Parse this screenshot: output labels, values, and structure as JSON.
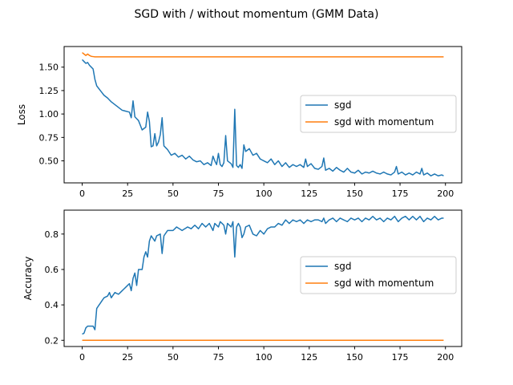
{
  "figure": {
    "title": "SGD with / without momentum (GMM Data)"
  },
  "colors": {
    "sgd": "#1f77b4",
    "sgd_momentum": "#ff7f0e"
  },
  "chart_data": [
    {
      "type": "line",
      "title": "",
      "xlabel": "",
      "ylabel": "Loss",
      "xlim": [
        -9.95,
        208.95
      ],
      "ylim": [
        0.265,
        1.72
      ],
      "xticks": [
        0,
        25,
        50,
        75,
        100,
        125,
        150,
        175,
        200
      ],
      "xtick_labels": [
        "0",
        "25",
        "50",
        "75",
        "100",
        "125",
        "150",
        "175",
        "200"
      ],
      "yticks": [
        0.5,
        0.75,
        1.0,
        1.25,
        1.5
      ],
      "ytick_labels": [
        "0.50",
        "0.75",
        "1.00",
        "1.25",
        "1.50"
      ],
      "legend": "center-right",
      "grid": false,
      "series": [
        {
          "name": "sgd",
          "color_key": "sgd",
          "keypoints": [
            [
              0,
              1.58
            ],
            [
              1,
              1.56
            ],
            [
              2,
              1.54
            ],
            [
              3,
              1.55
            ],
            [
              4,
              1.52
            ],
            [
              5,
              1.5
            ],
            [
              6,
              1.48
            ],
            [
              7,
              1.37
            ],
            [
              8,
              1.3
            ],
            [
              10,
              1.25
            ],
            [
              12,
              1.2
            ],
            [
              14,
              1.17
            ],
            [
              16,
              1.13
            ],
            [
              18,
              1.1
            ],
            [
              20,
              1.07
            ],
            [
              22,
              1.04
            ],
            [
              24,
              1.03
            ],
            [
              26,
              1.02
            ],
            [
              27,
              0.96
            ],
            [
              28,
              1.14
            ],
            [
              29,
              0.97
            ],
            [
              31,
              0.93
            ],
            [
              33,
              0.83
            ],
            [
              35,
              0.86
            ],
            [
              36,
              1.02
            ],
            [
              37,
              0.92
            ],
            [
              38,
              0.65
            ],
            [
              39,
              0.66
            ],
            [
              40,
              0.79
            ],
            [
              41,
              0.66
            ],
            [
              42,
              0.7
            ],
            [
              43,
              0.78
            ],
            [
              44,
              0.96
            ],
            [
              45,
              0.66
            ],
            [
              47,
              0.62
            ],
            [
              49,
              0.56
            ],
            [
              51,
              0.58
            ],
            [
              53,
              0.54
            ],
            [
              55,
              0.56
            ],
            [
              57,
              0.52
            ],
            [
              59,
              0.55
            ],
            [
              61,
              0.51
            ],
            [
              63,
              0.49
            ],
            [
              65,
              0.5
            ],
            [
              67,
              0.46
            ],
            [
              69,
              0.48
            ],
            [
              71,
              0.45
            ],
            [
              72,
              0.55
            ],
            [
              73,
              0.5
            ],
            [
              74,
              0.46
            ],
            [
              75,
              0.58
            ],
            [
              76,
              0.46
            ],
            [
              77,
              0.44
            ],
            [
              78,
              0.48
            ],
            [
              79,
              0.77
            ],
            [
              80,
              0.5
            ],
            [
              82,
              0.47
            ],
            [
              83,
              0.43
            ],
            [
              84,
              1.05
            ],
            [
              85,
              0.45
            ],
            [
              86,
              0.43
            ],
            [
              87,
              0.46
            ],
            [
              88,
              0.42
            ],
            [
              89,
              0.67
            ],
            [
              90,
              0.6
            ],
            [
              92,
              0.63
            ],
            [
              94,
              0.56
            ],
            [
              96,
              0.58
            ],
            [
              98,
              0.52
            ],
            [
              100,
              0.5
            ],
            [
              102,
              0.48
            ],
            [
              104,
              0.52
            ],
            [
              106,
              0.46
            ],
            [
              108,
              0.5
            ],
            [
              110,
              0.44
            ],
            [
              112,
              0.48
            ],
            [
              114,
              0.43
            ],
            [
              116,
              0.46
            ],
            [
              118,
              0.44
            ],
            [
              120,
              0.46
            ],
            [
              122,
              0.43
            ],
            [
              123,
              0.52
            ],
            [
              124,
              0.44
            ],
            [
              126,
              0.47
            ],
            [
              128,
              0.42
            ],
            [
              130,
              0.41
            ],
            [
              132,
              0.44
            ],
            [
              133,
              0.53
            ],
            [
              134,
              0.4
            ],
            [
              136,
              0.42
            ],
            [
              138,
              0.39
            ],
            [
              140,
              0.43
            ],
            [
              142,
              0.4
            ],
            [
              144,
              0.38
            ],
            [
              146,
              0.42
            ],
            [
              148,
              0.38
            ],
            [
              150,
              0.37
            ],
            [
              152,
              0.4
            ],
            [
              154,
              0.36
            ],
            [
              156,
              0.38
            ],
            [
              158,
              0.37
            ],
            [
              160,
              0.39
            ],
            [
              162,
              0.37
            ],
            [
              164,
              0.36
            ],
            [
              166,
              0.38
            ],
            [
              168,
              0.36
            ],
            [
              170,
              0.35
            ],
            [
              172,
              0.38
            ],
            [
              173,
              0.44
            ],
            [
              174,
              0.36
            ],
            [
              176,
              0.38
            ],
            [
              178,
              0.35
            ],
            [
              180,
              0.37
            ],
            [
              182,
              0.35
            ],
            [
              184,
              0.38
            ],
            [
              186,
              0.36
            ],
            [
              187,
              0.42
            ],
            [
              188,
              0.35
            ],
            [
              190,
              0.37
            ],
            [
              192,
              0.34
            ],
            [
              194,
              0.36
            ],
            [
              196,
              0.34
            ],
            [
              198,
              0.35
            ],
            [
              199,
              0.34
            ]
          ]
        },
        {
          "name": "sgd with momentum",
          "color_key": "sgd_momentum",
          "keypoints": [
            [
              0,
              1.655
            ],
            [
              1,
              1.64
            ],
            [
              2,
              1.625
            ],
            [
              3,
              1.64
            ],
            [
              4,
              1.625
            ],
            [
              5,
              1.615
            ],
            [
              7,
              1.61
            ],
            [
              199,
              1.61
            ]
          ]
        }
      ]
    },
    {
      "type": "line",
      "title": "",
      "xlabel": "",
      "ylabel": "Accuracy",
      "xlim": [
        -9.95,
        208.95
      ],
      "ylim": [
        0.165,
        0.935
      ],
      "xticks": [
        0,
        25,
        50,
        75,
        100,
        125,
        150,
        175,
        200
      ],
      "xtick_labels": [
        "0",
        "25",
        "50",
        "75",
        "100",
        "125",
        "150",
        "175",
        "200"
      ],
      "yticks": [
        0.2,
        0.4,
        0.6,
        0.8
      ],
      "ytick_labels": [
        "0.2",
        "0.4",
        "0.6",
        "0.8"
      ],
      "legend": "center-right",
      "grid": false,
      "series": [
        {
          "name": "sgd",
          "color_key": "sgd",
          "keypoints": [
            [
              0,
              0.235
            ],
            [
              1,
              0.24
            ],
            [
              2,
              0.27
            ],
            [
              3,
              0.28
            ],
            [
              5,
              0.28
            ],
            [
              6,
              0.28
            ],
            [
              7,
              0.26
            ],
            [
              8,
              0.38
            ],
            [
              10,
              0.41
            ],
            [
              12,
              0.44
            ],
            [
              14,
              0.45
            ],
            [
              15,
              0.47
            ],
            [
              16,
              0.44
            ],
            [
              18,
              0.47
            ],
            [
              20,
              0.46
            ],
            [
              22,
              0.48
            ],
            [
              24,
              0.5
            ],
            [
              26,
              0.52
            ],
            [
              27,
              0.48
            ],
            [
              28,
              0.55
            ],
            [
              29,
              0.58
            ],
            [
              30,
              0.51
            ],
            [
              31,
              0.6
            ],
            [
              33,
              0.6
            ],
            [
              34,
              0.67
            ],
            [
              35,
              0.7
            ],
            [
              36,
              0.67
            ],
            [
              37,
              0.76
            ],
            [
              38,
              0.79
            ],
            [
              40,
              0.76
            ],
            [
              41,
              0.79
            ],
            [
              43,
              0.8
            ],
            [
              44,
              0.69
            ],
            [
              45,
              0.79
            ],
            [
              47,
              0.82
            ],
            [
              50,
              0.82
            ],
            [
              52,
              0.84
            ],
            [
              55,
              0.82
            ],
            [
              58,
              0.84
            ],
            [
              60,
              0.83
            ],
            [
              62,
              0.85
            ],
            [
              64,
              0.83
            ],
            [
              66,
              0.86
            ],
            [
              68,
              0.84
            ],
            [
              70,
              0.86
            ],
            [
              72,
              0.82
            ],
            [
              73,
              0.86
            ],
            [
              75,
              0.84
            ],
            [
              76,
              0.87
            ],
            [
              78,
              0.85
            ],
            [
              79,
              0.8
            ],
            [
              80,
              0.86
            ],
            [
              82,
              0.84
            ],
            [
              83,
              0.87
            ],
            [
              84,
              0.67
            ],
            [
              85,
              0.84
            ],
            [
              86,
              0.86
            ],
            [
              87,
              0.84
            ],
            [
              88,
              0.78
            ],
            [
              89,
              0.8
            ],
            [
              90,
              0.84
            ],
            [
              92,
              0.85
            ],
            [
              94,
              0.8
            ],
            [
              96,
              0.79
            ],
            [
              98,
              0.82
            ],
            [
              100,
              0.8
            ],
            [
              102,
              0.83
            ],
            [
              104,
              0.84
            ],
            [
              106,
              0.84
            ],
            [
              108,
              0.86
            ],
            [
              110,
              0.85
            ],
            [
              112,
              0.88
            ],
            [
              114,
              0.86
            ],
            [
              116,
              0.88
            ],
            [
              118,
              0.87
            ],
            [
              120,
              0.88
            ],
            [
              122,
              0.86
            ],
            [
              124,
              0.88
            ],
            [
              126,
              0.87
            ],
            [
              128,
              0.88
            ],
            [
              130,
              0.88
            ],
            [
              132,
              0.87
            ],
            [
              133,
              0.89
            ],
            [
              134,
              0.86
            ],
            [
              136,
              0.88
            ],
            [
              138,
              0.89
            ],
            [
              140,
              0.87
            ],
            [
              142,
              0.89
            ],
            [
              144,
              0.88
            ],
            [
              146,
              0.87
            ],
            [
              148,
              0.89
            ],
            [
              150,
              0.88
            ],
            [
              152,
              0.89
            ],
            [
              154,
              0.87
            ],
            [
              156,
              0.89
            ],
            [
              158,
              0.88
            ],
            [
              160,
              0.9
            ],
            [
              162,
              0.88
            ],
            [
              164,
              0.89
            ],
            [
              166,
              0.87
            ],
            [
              168,
              0.89
            ],
            [
              170,
              0.88
            ],
            [
              172,
              0.9
            ],
            [
              174,
              0.87
            ],
            [
              176,
              0.89
            ],
            [
              178,
              0.9
            ],
            [
              180,
              0.88
            ],
            [
              182,
              0.9
            ],
            [
              184,
              0.88
            ],
            [
              186,
              0.9
            ],
            [
              188,
              0.87
            ],
            [
              190,
              0.89
            ],
            [
              192,
              0.88
            ],
            [
              194,
              0.9
            ],
            [
              196,
              0.88
            ],
            [
              198,
              0.89
            ],
            [
              199,
              0.89
            ]
          ]
        },
        {
          "name": "sgd with momentum",
          "color_key": "sgd_momentum",
          "keypoints": [
            [
              0,
              0.2
            ],
            [
              199,
              0.2
            ]
          ]
        }
      ]
    }
  ]
}
